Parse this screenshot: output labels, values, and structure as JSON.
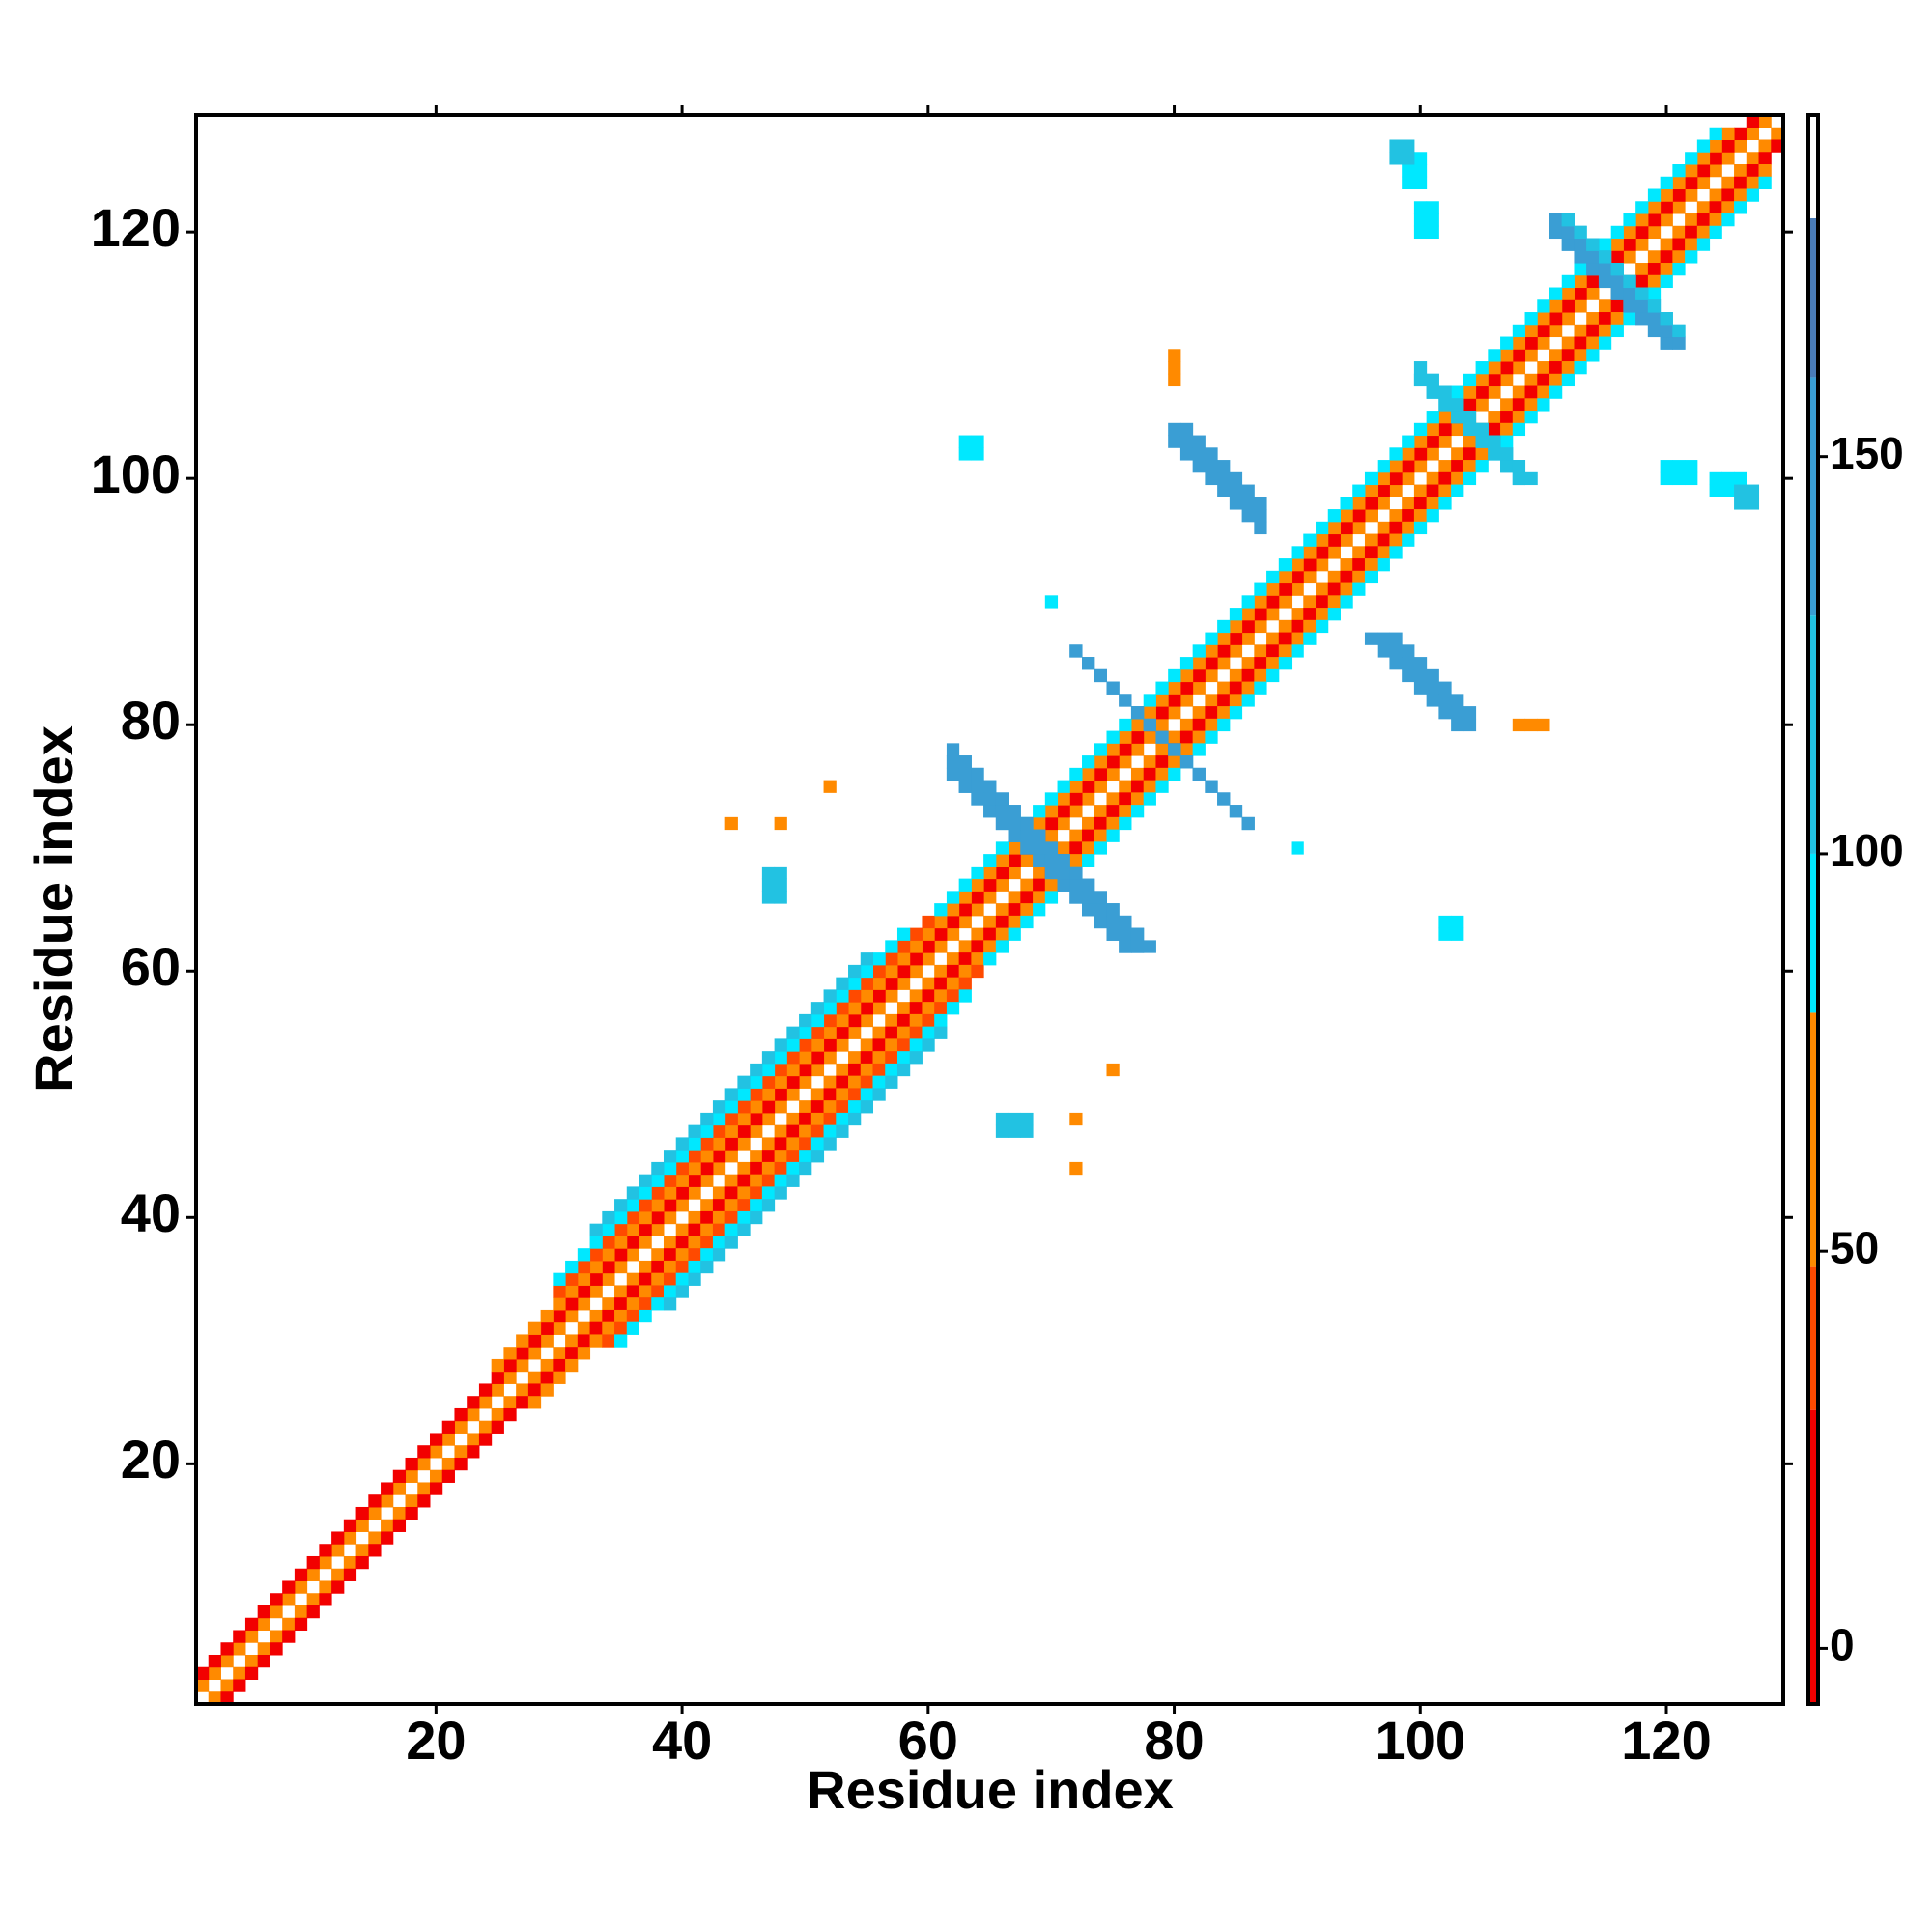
{
  "chart_data": {
    "type": "contact-map",
    "x_label": "Residue index",
    "y_label": "Residue index",
    "xlim": [
      0.5,
      129.5
    ],
    "ylim": [
      0.5,
      129.5
    ],
    "xticks": [
      20,
      40,
      60,
      80,
      100,
      120
    ],
    "yticks": [
      20,
      40,
      60,
      80,
      100,
      120
    ],
    "symmetric": true,
    "colorbar": {
      "lim": [
        -7,
        193
      ],
      "ticks": [
        0,
        50,
        100,
        150
      ],
      "segments": [
        {
          "from": -7,
          "to": 30,
          "color": "#f20000"
        },
        {
          "from": 30,
          "to": 48,
          "color": "#ff4a00"
        },
        {
          "from": 48,
          "to": 80,
          "color": "#ff8a00"
        },
        {
          "from": 80,
          "to": 100,
          "color": "#00e8ff"
        },
        {
          "from": 100,
          "to": 130,
          "color": "#22c2e2"
        },
        {
          "from": 130,
          "to": 160,
          "color": "#3a9ed4"
        },
        {
          "from": 160,
          "to": 180,
          "color": "#4a7cb8"
        },
        {
          "from": 180,
          "to": 193,
          "color": "#ffffff"
        }
      ]
    },
    "bands": [
      {
        "offset": 1,
        "from": 1,
        "to": 128,
        "value": 55
      },
      {
        "offset": 2,
        "from": 1,
        "to": 127,
        "value": 15
      },
      {
        "offset": 3,
        "from": 25,
        "to": 125,
        "value": 65
      },
      {
        "offset": 4,
        "from": 30,
        "to": 60,
        "value": 40
      },
      {
        "offset": 5,
        "from": 30,
        "to": 58,
        "value": 90
      },
      {
        "offset": 6,
        "from": 33,
        "to": 55,
        "value": 110
      },
      {
        "offset": 4,
        "from": 61,
        "to": 124,
        "value": 90
      }
    ],
    "antibands": [
      {
        "sum": 138,
        "from": 62,
        "to": 76,
        "value": 155
      },
      {
        "sum": 139,
        "from": 62,
        "to": 77,
        "value": 155
      },
      {
        "sum": 140,
        "from": 63,
        "to": 78,
        "value": 150
      },
      {
        "sum": 158,
        "from": 72,
        "to": 86,
        "value": 150
      },
      {
        "sum": 183,
        "from": 80,
        "to": 87,
        "value": 155
      },
      {
        "sum": 184,
        "from": 80,
        "to": 87,
        "value": 155
      },
      {
        "sum": 185,
        "from": 81,
        "to": 87,
        "value": 140
      },
      {
        "sum": 208,
        "from": 100,
        "to": 108,
        "value": 130
      },
      {
        "sum": 209,
        "from": 100,
        "to": 108,
        "value": 120
      },
      {
        "sum": 231,
        "from": 111,
        "to": 120,
        "value": 150
      },
      {
        "sum": 232,
        "from": 111,
        "to": 121,
        "value": 150
      },
      {
        "sum": 233,
        "from": 112,
        "to": 121,
        "value": 130
      }
    ],
    "patches": [
      {
        "x": [
          47,
          48
        ],
        "y": [
          66,
          68
        ],
        "value": 120
      },
      {
        "x": [
          44,
          44
        ],
        "y": [
          72,
          72
        ],
        "value": 65
      },
      {
        "x": [
          48,
          48
        ],
        "y": [
          72,
          72
        ],
        "value": 65
      },
      {
        "x": [
          52,
          52
        ],
        "y": [
          75,
          75
        ],
        "value": 65
      },
      {
        "x": [
          63,
          64
        ],
        "y": [
          102,
          103
        ],
        "value": 100
      },
      {
        "x": [
          99,
          100
        ],
        "y": [
          124,
          126
        ],
        "value": 95
      },
      {
        "x": [
          120,
          122
        ],
        "y": [
          100,
          101
        ],
        "value": 90
      },
      {
        "x": [
          126,
          127
        ],
        "y": [
          98,
          99
        ],
        "value": 110
      },
      {
        "x": [
          80,
          80
        ],
        "y": [
          108,
          110
        ],
        "value": 65
      },
      {
        "x": [
          90,
          90
        ],
        "y": [
          70,
          70
        ],
        "value": 90
      }
    ]
  }
}
